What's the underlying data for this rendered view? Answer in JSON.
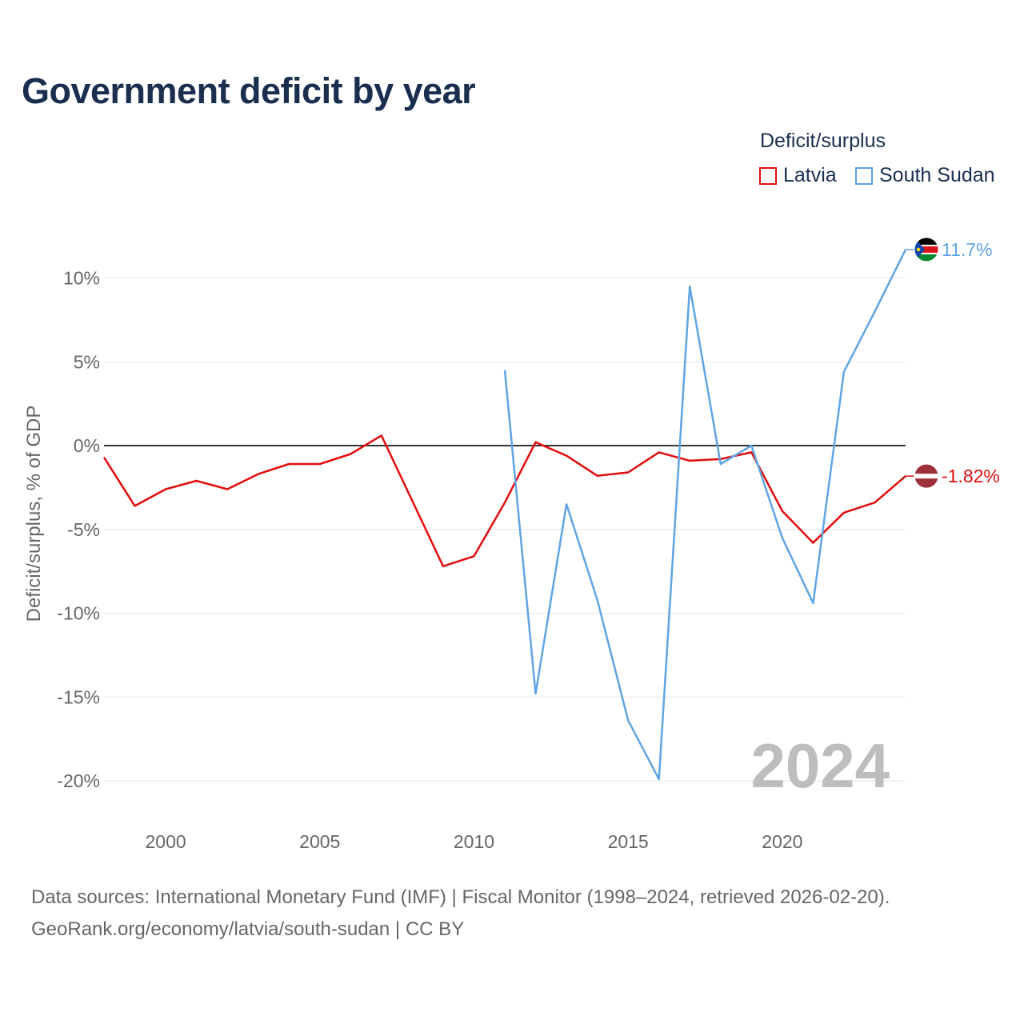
{
  "chart_data": {
    "type": "line",
    "title": "Government deficit by year",
    "ylabel": "Deficit/surplus, % of GDP",
    "xlabel": "",
    "legend_title": "Deficit/surplus",
    "legend_position": "top-right",
    "xlim": [
      1998,
      2024
    ],
    "ylim": [
      -21,
      13
    ],
    "x_ticks": [
      2000,
      2005,
      2010,
      2015,
      2020
    ],
    "x_tick_labels": [
      "2000",
      "2005",
      "2010",
      "2015",
      "2020"
    ],
    "y_ticks": [
      10,
      5,
      0,
      -5,
      -10,
      -15,
      -20
    ],
    "y_tick_labels": [
      "10%",
      "5%",
      "0%",
      "-5%",
      "-10%",
      "-15%",
      "-20%"
    ],
    "year_watermark": "2024",
    "grid": true,
    "series": [
      {
        "name": "Latvia",
        "color": "#e00c0c",
        "end_label": "-1.82%",
        "x": [
          1998,
          1999,
          2000,
          2001,
          2002,
          2003,
          2004,
          2005,
          2006,
          2007,
          2008,
          2009,
          2010,
          2011,
          2012,
          2013,
          2014,
          2015,
          2016,
          2017,
          2018,
          2019,
          2020,
          2021,
          2022,
          2023,
          2024
        ],
        "values": [
          -0.7,
          -3.6,
          -2.6,
          -2.1,
          -2.6,
          -1.7,
          -1.1,
          -1.1,
          -0.5,
          0.6,
          -3.3,
          -7.2,
          -6.6,
          -3.4,
          0.2,
          -0.6,
          -1.8,
          -1.6,
          -0.4,
          -0.9,
          -0.8,
          -0.4,
          -3.9,
          -5.8,
          -4.0,
          -3.4,
          -1.82
        ]
      },
      {
        "name": "South Sudan",
        "color": "#5fa4e3",
        "end_label": "11.7%",
        "x": [
          2011,
          2012,
          2013,
          2014,
          2015,
          2016,
          2017,
          2018,
          2019,
          2020,
          2021,
          2022,
          2023,
          2024
        ],
        "values": [
          4.5,
          -14.8,
          -3.5,
          -9.2,
          -16.4,
          -19.9,
          9.5,
          -1.1,
          0.0,
          -5.5,
          -9.4,
          4.4,
          8.0,
          11.7
        ]
      }
    ]
  },
  "footer": {
    "line1": "Data sources: International Monetary Fund (IMF) | Fiscal Monitor (1998–2024, retrieved 2026-02-20).",
    "line2": "GeoRank.org/economy/latvia/south-sudan | CC BY"
  }
}
